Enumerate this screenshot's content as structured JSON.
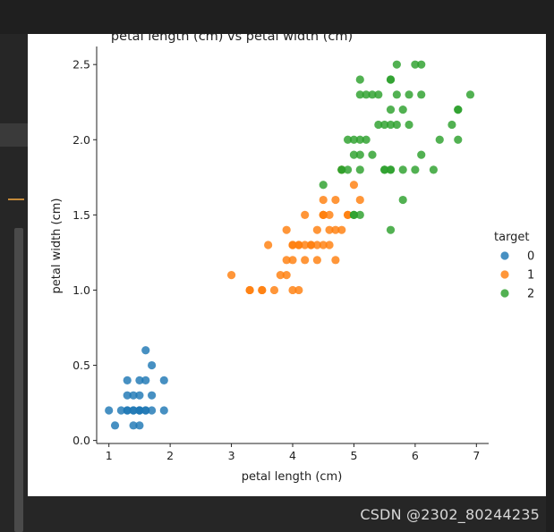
{
  "watermark": {
    "text": "CSDN @2302_80244235"
  },
  "colors": {
    "series_0": "#1f77b4",
    "series_1": "#ff7f0e",
    "series_2": "#2ca02c",
    "axis": "#222222",
    "panel": "#ffffff",
    "frame": "#2b2b2b"
  },
  "chart_data": {
    "type": "scatter",
    "title": "petal length (cm) vs petal width (cm)",
    "xlabel": "petal length (cm)",
    "ylabel": "petal width (cm)",
    "xlim": [
      0.8,
      7.2
    ],
    "ylim": [
      -0.02,
      2.62
    ],
    "xticks": [
      1,
      2,
      3,
      4,
      5,
      6,
      7
    ],
    "xtick_labels": [
      "1",
      "2",
      "3",
      "4",
      "5",
      "6",
      "7"
    ],
    "yticks": [
      0.0,
      0.5,
      1.0,
      1.5,
      2.0,
      2.5
    ],
    "ytick_labels": [
      "0.0",
      "0.5",
      "1.0",
      "1.5",
      "2.0",
      "2.5"
    ],
    "grid": false,
    "legend": {
      "title": "target",
      "placement": "right"
    },
    "series": [
      {
        "name": "0",
        "x": [
          1.0,
          1.1,
          1.2,
          1.3,
          1.3,
          1.3,
          1.4,
          1.4,
          1.4,
          1.5,
          1.5,
          1.5,
          1.5,
          1.5,
          1.6,
          1.6,
          1.6,
          1.6,
          1.7,
          1.7,
          1.7,
          1.9,
          1.9,
          1.4,
          1.3,
          1.5
        ],
        "y": [
          0.2,
          0.1,
          0.2,
          0.2,
          0.3,
          0.4,
          0.2,
          0.3,
          0.1,
          0.2,
          0.4,
          0.3,
          0.1,
          0.2,
          0.2,
          0.4,
          0.6,
          0.2,
          0.5,
          0.3,
          0.2,
          0.2,
          0.4,
          0.2,
          0.2,
          0.2
        ]
      },
      {
        "name": "1",
        "x": [
          3.0,
          3.3,
          3.3,
          3.5,
          3.5,
          3.6,
          3.7,
          3.8,
          3.9,
          3.9,
          3.9,
          4.0,
          4.0,
          4.0,
          4.0,
          4.1,
          4.1,
          4.1,
          4.2,
          4.2,
          4.3,
          4.3,
          4.4,
          4.4,
          4.4,
          4.5,
          4.5,
          4.5,
          4.5,
          4.6,
          4.6,
          4.6,
          4.7,
          4.7,
          4.7,
          4.8,
          4.8,
          4.9,
          4.9,
          5.0,
          5.1,
          4.2,
          4.5
        ],
        "y": [
          1.1,
          1.0,
          1.0,
          1.0,
          1.0,
          1.3,
          1.0,
          1.1,
          1.1,
          1.2,
          1.4,
          1.0,
          1.2,
          1.3,
          1.3,
          1.0,
          1.3,
          1.3,
          1.2,
          1.5,
          1.3,
          1.3,
          1.2,
          1.3,
          1.4,
          1.3,
          1.5,
          1.6,
          1.5,
          1.3,
          1.4,
          1.5,
          1.2,
          1.4,
          1.6,
          1.4,
          1.8,
          1.5,
          1.5,
          1.7,
          1.6,
          1.3,
          1.5
        ]
      },
      {
        "name": "2",
        "x": [
          4.5,
          4.8,
          4.8,
          4.9,
          4.9,
          5.0,
          5.0,
          5.0,
          5.0,
          5.1,
          5.1,
          5.1,
          5.1,
          5.1,
          5.1,
          5.2,
          5.2,
          5.3,
          5.3,
          5.4,
          5.4,
          5.5,
          5.5,
          5.5,
          5.6,
          5.6,
          5.6,
          5.6,
          5.6,
          5.6,
          5.7,
          5.7,
          5.7,
          5.8,
          5.8,
          5.8,
          5.9,
          5.9,
          6.0,
          6.0,
          6.1,
          6.1,
          6.1,
          6.3,
          6.4,
          6.6,
          6.7,
          6.7,
          6.7,
          6.9,
          5.6
        ],
        "y": [
          1.7,
          1.8,
          1.8,
          1.8,
          2.0,
          1.5,
          1.9,
          2.0,
          1.5,
          2.4,
          2.3,
          2.0,
          1.9,
          1.8,
          1.5,
          2.0,
          2.3,
          1.9,
          2.3,
          2.3,
          2.1,
          1.8,
          2.1,
          1.8,
          2.4,
          2.2,
          1.4,
          2.1,
          1.8,
          1.8,
          2.3,
          2.5,
          2.1,
          1.8,
          2.2,
          1.6,
          2.1,
          2.3,
          2.5,
          1.8,
          2.5,
          2.3,
          1.9,
          1.8,
          2.0,
          2.1,
          2.2,
          2.0,
          2.2,
          2.3,
          2.4
        ]
      }
    ]
  }
}
